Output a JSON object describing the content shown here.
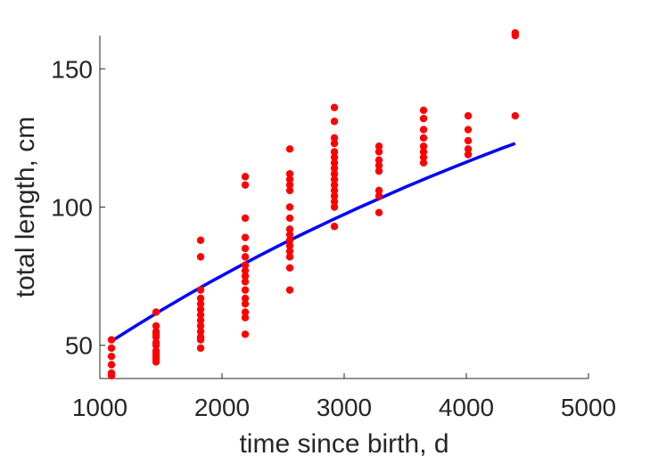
{
  "chart_data": {
    "type": "scatter",
    "xlabel": "time since birth, d",
    "ylabel": "total length, cm",
    "xlim": [
      1000,
      5000
    ],
    "ylim": [
      38,
      162
    ],
    "xticks": [
      1000,
      2000,
      3000,
      4000,
      5000
    ],
    "yticks": [
      50,
      100,
      150
    ],
    "xtick_labels": [
      "1000",
      "2000",
      "3000",
      "4000",
      "5000"
    ],
    "ytick_labels": [
      "50",
      "100",
      "150"
    ],
    "grid": false,
    "series": [
      {
        "kind": "points",
        "color": "#ff0000",
        "points": [
          [
            1095,
            52
          ],
          [
            1095,
            49
          ],
          [
            1095,
            46
          ],
          [
            1095,
            43
          ],
          [
            1095,
            40
          ],
          [
            1095,
            39
          ],
          [
            1460,
            62
          ],
          [
            1460,
            57
          ],
          [
            1460,
            55
          ],
          [
            1460,
            54
          ],
          [
            1460,
            53
          ],
          [
            1460,
            51
          ],
          [
            1460,
            50
          ],
          [
            1460,
            48
          ],
          [
            1460,
            47
          ],
          [
            1460,
            46
          ],
          [
            1460,
            45
          ],
          [
            1460,
            44
          ],
          [
            1825,
            88
          ],
          [
            1825,
            82
          ],
          [
            1825,
            70
          ],
          [
            1825,
            67
          ],
          [
            1825,
            65
          ],
          [
            1825,
            63
          ],
          [
            1825,
            61
          ],
          [
            1825,
            59
          ],
          [
            1825,
            57
          ],
          [
            1825,
            55
          ],
          [
            1825,
            53
          ],
          [
            1825,
            52
          ],
          [
            1825,
            49
          ],
          [
            2190,
            111
          ],
          [
            2190,
            108
          ],
          [
            2190,
            96
          ],
          [
            2190,
            89
          ],
          [
            2190,
            85
          ],
          [
            2190,
            82
          ],
          [
            2190,
            79
          ],
          [
            2190,
            77
          ],
          [
            2190,
            75
          ],
          [
            2190,
            73
          ],
          [
            2190,
            70
          ],
          [
            2190,
            67
          ],
          [
            2190,
            65
          ],
          [
            2190,
            62
          ],
          [
            2190,
            60
          ],
          [
            2190,
            54
          ],
          [
            2555,
            121
          ],
          [
            2555,
            112
          ],
          [
            2555,
            110
          ],
          [
            2555,
            108
          ],
          [
            2555,
            106
          ],
          [
            2555,
            100
          ],
          [
            2555,
            96
          ],
          [
            2555,
            92
          ],
          [
            2555,
            90
          ],
          [
            2555,
            88
          ],
          [
            2555,
            86
          ],
          [
            2555,
            84
          ],
          [
            2555,
            82
          ],
          [
            2555,
            78
          ],
          [
            2555,
            70
          ],
          [
            2920,
            136
          ],
          [
            2920,
            131
          ],
          [
            2920,
            125
          ],
          [
            2920,
            123
          ],
          [
            2920,
            120
          ],
          [
            2920,
            118
          ],
          [
            2920,
            116
          ],
          [
            2920,
            114
          ],
          [
            2920,
            112
          ],
          [
            2920,
            110
          ],
          [
            2920,
            108
          ],
          [
            2920,
            106
          ],
          [
            2920,
            104
          ],
          [
            2920,
            102
          ],
          [
            2920,
            100
          ],
          [
            2920,
            93
          ],
          [
            3285,
            122
          ],
          [
            3285,
            120
          ],
          [
            3285,
            117
          ],
          [
            3285,
            115
          ],
          [
            3285,
            113
          ],
          [
            3285,
            106
          ],
          [
            3285,
            104
          ],
          [
            3285,
            98
          ],
          [
            3650,
            135
          ],
          [
            3650,
            132
          ],
          [
            3650,
            128
          ],
          [
            3650,
            125
          ],
          [
            3650,
            122
          ],
          [
            3650,
            120
          ],
          [
            3650,
            118
          ],
          [
            3650,
            116
          ],
          [
            4015,
            133
          ],
          [
            4015,
            128
          ],
          [
            4015,
            124
          ],
          [
            4015,
            121
          ],
          [
            4015,
            119
          ],
          [
            4400,
            163
          ],
          [
            4400,
            162
          ],
          [
            4400,
            133
          ]
        ]
      },
      {
        "kind": "line",
        "color": "#0000ff",
        "points": [
          [
            1095,
            51.5
          ],
          [
            1300,
            57.2
          ],
          [
            1500,
            62.6
          ],
          [
            1700,
            67.8
          ],
          [
            1900,
            72.8
          ],
          [
            2100,
            77.6
          ],
          [
            2300,
            82.3
          ],
          [
            2500,
            86.8
          ],
          [
            2700,
            91.1
          ],
          [
            2900,
            95.3
          ],
          [
            3100,
            99.4
          ],
          [
            3300,
            103.3
          ],
          [
            3500,
            107.2
          ],
          [
            3700,
            110.9
          ],
          [
            3900,
            114.5
          ],
          [
            4100,
            118.0
          ],
          [
            4300,
            121.4
          ],
          [
            4400,
            123.0
          ]
        ]
      }
    ]
  }
}
